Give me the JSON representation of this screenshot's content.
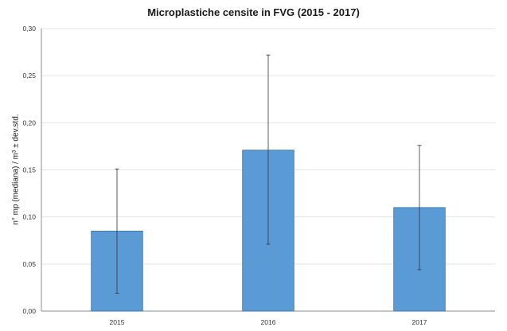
{
  "chart_data": {
    "type": "bar",
    "title": "Microplastiche censite in FVG (2015 - 2017)",
    "xlabel": "",
    "ylabel": "n° mp (mediana) / m³ ± dev.std.",
    "categories": [
      "2015",
      "2016",
      "2017"
    ],
    "values": [
      0.085,
      0.171,
      0.11
    ],
    "error_low": [
      0.019,
      0.071,
      0.044
    ],
    "error_high": [
      0.151,
      0.272,
      0.176
    ],
    "ylim": [
      0,
      0.3
    ],
    "yticks": [
      "0,00",
      "0,05",
      "0,10",
      "0,15",
      "0,20",
      "0,25",
      "0,30"
    ],
    "grid": true,
    "legend": "none",
    "bar_color": "#5b9bd5",
    "bar_edge_color": "#3f6f9f",
    "grid_color": "#e3e3e3",
    "axis_color": "#8c8c8c"
  }
}
